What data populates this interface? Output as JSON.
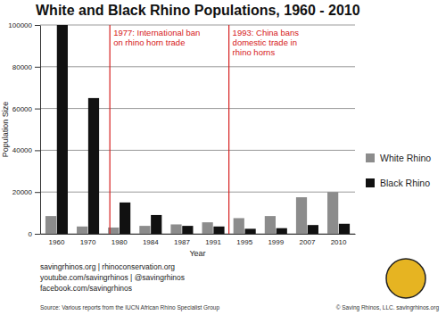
{
  "chart_data": {
    "type": "bar",
    "title": "White and Black Rhino Populations, 1960 - 2010",
    "x_label": "Year",
    "y_label": "Population Size",
    "categories": [
      "1960",
      "1970",
      "1980",
      "1984",
      "1987",
      "1991",
      "1995",
      "1999",
      "2007",
      "2010"
    ],
    "series": [
      {
        "name": "White Rhino",
        "color": "#8c8c8c",
        "values": [
          8500,
          3500,
          3000,
          3800,
          4500,
          5500,
          7500,
          8500,
          17500,
          20000
        ]
      },
      {
        "name": "Black Rhino",
        "color": "#111111",
        "values": [
          100000,
          65000,
          15000,
          9000,
          3800,
          3500,
          2400,
          2700,
          4200,
          4800
        ]
      }
    ],
    "ylim": [
      0,
      100000
    ],
    "yticks": [
      0,
      20000,
      40000,
      60000,
      80000,
      100000
    ],
    "grid": true,
    "legend": "right",
    "annotations": [
      {
        "x": 1977,
        "text": [
          "1977: International ban",
          "on rhino horn trade"
        ],
        "color": "#d62020"
      },
      {
        "x": 1993,
        "text": [
          "1993: China bans",
          "domestic trade in",
          "rhino horns"
        ],
        "color": "#d62020"
      }
    ],
    "footer": [
      "savingrhinos.org | rhinoconservation.org",
      "youtube.com/savingrhinos | @savingrhinos",
      "facebook.com/savingrhinos"
    ],
    "source": "Source: Various reports from the IUCN African Rhino Specialist Group",
    "copyright": "© Saving Rhinos, LLC.  savingrhinos.org"
  }
}
